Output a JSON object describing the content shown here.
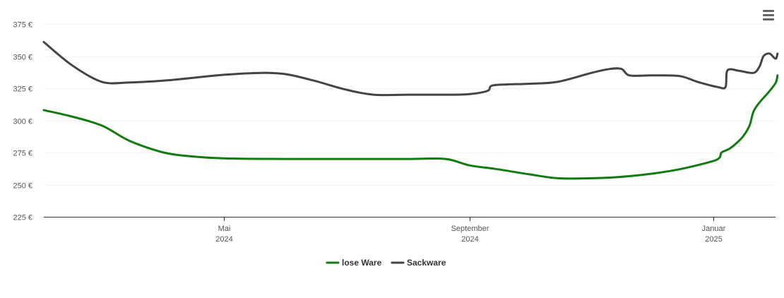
{
  "chart_data": {
    "type": "line",
    "title": "",
    "xlabel": "",
    "ylabel": "",
    "ylim": [
      225,
      375
    ],
    "y_ticks": [
      225,
      250,
      275,
      300,
      325,
      350,
      375
    ],
    "y_tick_suffix": " €",
    "xlim": [
      "2024-02-01",
      "2025-02-01"
    ],
    "x_ticks": [
      {
        "date": "2024-05-01",
        "label_month": "Mai",
        "label_year": "2024"
      },
      {
        "date": "2024-09-01",
        "label_month": "September",
        "label_year": "2024"
      },
      {
        "date": "2025-01-01",
        "label_month": "Januar",
        "label_year": "2025"
      }
    ],
    "grid": true,
    "legend_position": "bottom-center",
    "series": [
      {
        "name": "lose Ware",
        "color": "#107C10",
        "points": [
          [
            "2024-02-01",
            308
          ],
          [
            "2024-02-15",
            303
          ],
          [
            "2024-03-01",
            296
          ],
          [
            "2024-03-15",
            284
          ],
          [
            "2024-04-01",
            275
          ],
          [
            "2024-04-15",
            272
          ],
          [
            "2024-05-01",
            270.5
          ],
          [
            "2024-06-01",
            270
          ],
          [
            "2024-07-01",
            270
          ],
          [
            "2024-08-01",
            270
          ],
          [
            "2024-08-20",
            270
          ],
          [
            "2024-09-01",
            265
          ],
          [
            "2024-09-15",
            262
          ],
          [
            "2024-10-01",
            258
          ],
          [
            "2024-10-15",
            255
          ],
          [
            "2024-11-01",
            255
          ],
          [
            "2024-11-15",
            256
          ],
          [
            "2024-12-01",
            258.5
          ],
          [
            "2024-12-15",
            262
          ],
          [
            "2024-12-31",
            268
          ],
          [
            "2025-01-04",
            271
          ],
          [
            "2025-01-05",
            275
          ],
          [
            "2025-01-09",
            278
          ],
          [
            "2025-01-13",
            283
          ],
          [
            "2025-01-16",
            288
          ],
          [
            "2025-01-19",
            296
          ],
          [
            "2025-01-21",
            307
          ],
          [
            "2025-01-24",
            314
          ],
          [
            "2025-01-28",
            321
          ],
          [
            "2025-02-01",
            329
          ],
          [
            "2025-02-02",
            335
          ]
        ]
      },
      {
        "name": "Sackware",
        "color": "#434348",
        "points": [
          [
            "2024-02-01",
            361
          ],
          [
            "2024-02-15",
            343
          ],
          [
            "2024-03-01",
            330
          ],
          [
            "2024-03-15",
            329.5
          ],
          [
            "2024-04-01",
            331
          ],
          [
            "2024-04-15",
            333
          ],
          [
            "2024-05-01",
            335.5
          ],
          [
            "2024-05-20",
            337
          ],
          [
            "2024-06-01",
            336
          ],
          [
            "2024-06-15",
            331
          ],
          [
            "2024-07-01",
            324
          ],
          [
            "2024-07-15",
            320
          ],
          [
            "2024-08-01",
            320
          ],
          [
            "2024-08-20",
            320
          ],
          [
            "2024-09-01",
            320.5
          ],
          [
            "2024-09-10",
            323
          ],
          [
            "2024-09-12",
            327
          ],
          [
            "2024-09-20",
            328
          ],
          [
            "2024-10-01",
            328.5
          ],
          [
            "2024-10-15",
            330
          ],
          [
            "2024-11-01",
            337
          ],
          [
            "2024-11-10",
            340
          ],
          [
            "2024-11-16",
            340
          ],
          [
            "2024-11-20",
            335
          ],
          [
            "2024-12-01",
            335
          ],
          [
            "2024-12-15",
            334.5
          ],
          [
            "2024-12-24",
            330
          ],
          [
            "2025-01-03",
            326
          ],
          [
            "2025-01-07",
            326
          ],
          [
            "2025-01-08",
            339
          ],
          [
            "2025-01-14",
            338.5
          ],
          [
            "2025-01-21",
            337
          ],
          [
            "2025-01-24",
            342
          ],
          [
            "2025-01-26",
            350
          ],
          [
            "2025-01-29",
            352
          ],
          [
            "2025-02-01",
            348
          ],
          [
            "2025-02-02",
            352
          ]
        ]
      }
    ]
  }
}
